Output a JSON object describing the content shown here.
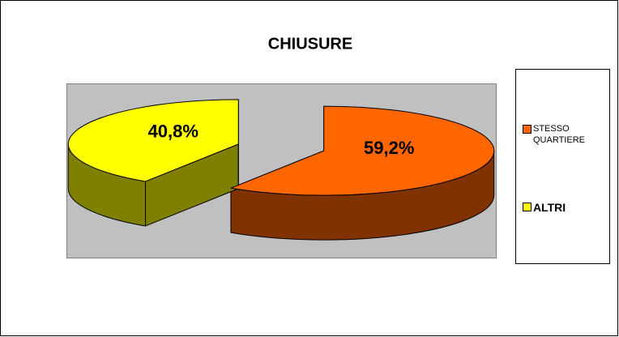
{
  "chart_data": {
    "type": "pie3d",
    "title": "CHIUSURE",
    "categories": [
      "STESSO QUARTIERE",
      "ALTRI"
    ],
    "values": [
      59.2,
      40.8
    ],
    "value_labels": [
      "59,2%",
      "40,8%"
    ],
    "colors": [
      "#ff6600",
      "#ffff00"
    ],
    "legend": "right"
  }
}
